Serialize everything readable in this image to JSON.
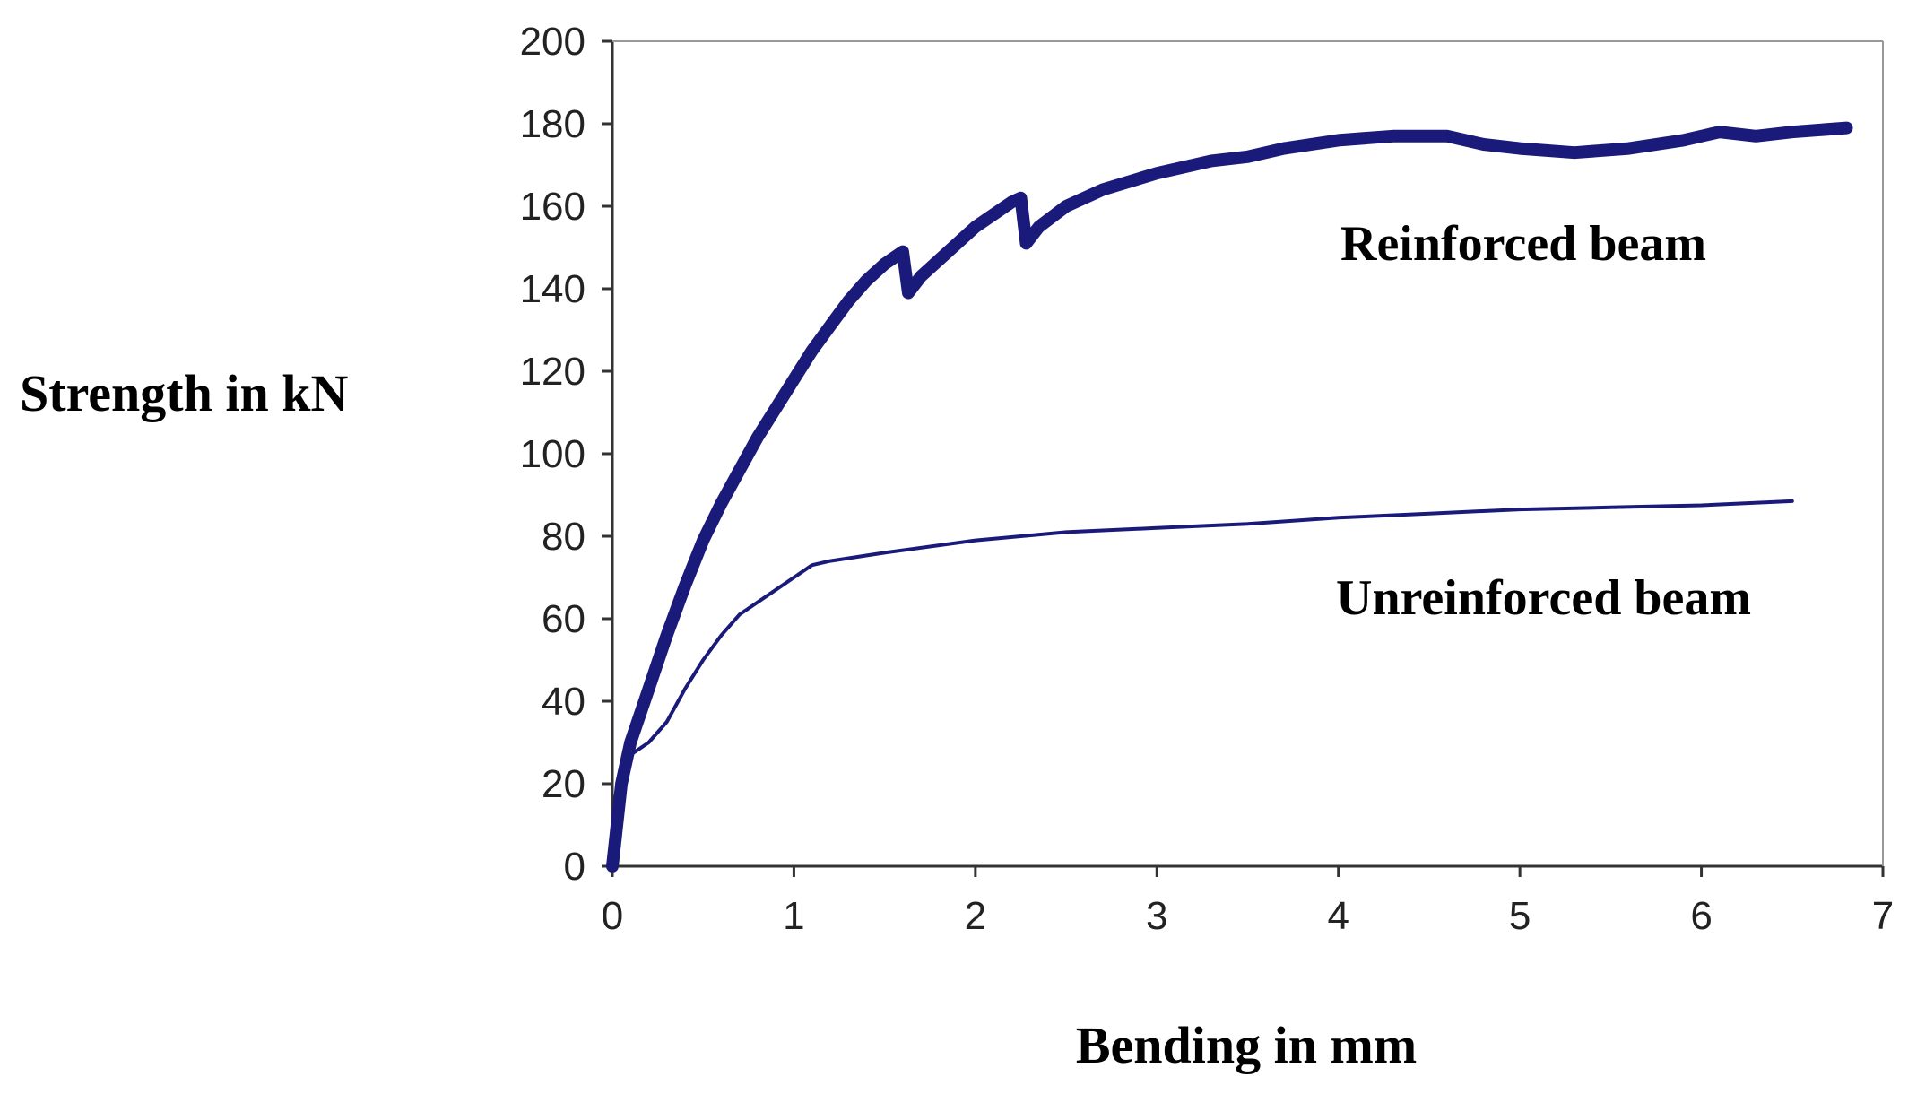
{
  "chart_data": {
    "type": "line",
    "xlabel": "Bending in mm",
    "ylabel": "Strength in kN",
    "xlim": [
      0,
      7
    ],
    "ylim": [
      0,
      200
    ],
    "x_ticks": [
      0,
      1,
      2,
      3,
      4,
      5,
      6,
      7
    ],
    "y_ticks": [
      0,
      20,
      40,
      60,
      80,
      100,
      120,
      140,
      160,
      180,
      200
    ],
    "grid": false,
    "legend": "none",
    "series": [
      {
        "name": "Reinforced beam",
        "color": "#1a1a7a",
        "weight": "thick",
        "points": [
          [
            0,
            0
          ],
          [
            0.05,
            20
          ],
          [
            0.1,
            30
          ],
          [
            0.2,
            43
          ],
          [
            0.3,
            56
          ],
          [
            0.4,
            68
          ],
          [
            0.5,
            79
          ],
          [
            0.6,
            88
          ],
          [
            0.7,
            96
          ],
          [
            0.8,
            104
          ],
          [
            0.9,
            111
          ],
          [
            1.0,
            118
          ],
          [
            1.1,
            125
          ],
          [
            1.2,
            131
          ],
          [
            1.3,
            137
          ],
          [
            1.4,
            142
          ],
          [
            1.5,
            146
          ],
          [
            1.6,
            149
          ],
          [
            1.63,
            139
          ],
          [
            1.7,
            143
          ],
          [
            1.8,
            147
          ],
          [
            1.9,
            151
          ],
          [
            2.0,
            155
          ],
          [
            2.1,
            158
          ],
          [
            2.2,
            161
          ],
          [
            2.25,
            162
          ],
          [
            2.28,
            151
          ],
          [
            2.35,
            155
          ],
          [
            2.5,
            160
          ],
          [
            2.7,
            164
          ],
          [
            3.0,
            168
          ],
          [
            3.3,
            171
          ],
          [
            3.5,
            172
          ],
          [
            3.7,
            174
          ],
          [
            4.0,
            176
          ],
          [
            4.3,
            177
          ],
          [
            4.6,
            177
          ],
          [
            4.8,
            175
          ],
          [
            5.0,
            174
          ],
          [
            5.3,
            173
          ],
          [
            5.6,
            174
          ],
          [
            5.9,
            176
          ],
          [
            6.1,
            178
          ],
          [
            6.3,
            177
          ],
          [
            6.5,
            178
          ],
          [
            6.8,
            179
          ]
        ],
        "label_position": "right-upper"
      },
      {
        "name": "Unreinforced beam",
        "color": "#1a1a7a",
        "weight": "thin",
        "points": [
          [
            0,
            0
          ],
          [
            0.05,
            18
          ],
          [
            0.1,
            27
          ],
          [
            0.2,
            30
          ],
          [
            0.3,
            35
          ],
          [
            0.4,
            43
          ],
          [
            0.5,
            50
          ],
          [
            0.6,
            56
          ],
          [
            0.7,
            61
          ],
          [
            0.8,
            64
          ],
          [
            0.9,
            67
          ],
          [
            1.0,
            70
          ],
          [
            1.1,
            73
          ],
          [
            1.2,
            74
          ],
          [
            1.5,
            76
          ],
          [
            2.0,
            79
          ],
          [
            2.5,
            81
          ],
          [
            3.0,
            82
          ],
          [
            3.5,
            83
          ],
          [
            4.0,
            84.5
          ],
          [
            4.5,
            85.5
          ],
          [
            5.0,
            86.5
          ],
          [
            5.5,
            87
          ],
          [
            6.0,
            87.5
          ],
          [
            6.5,
            88.5
          ]
        ],
        "label_position": "right-lower"
      }
    ]
  }
}
